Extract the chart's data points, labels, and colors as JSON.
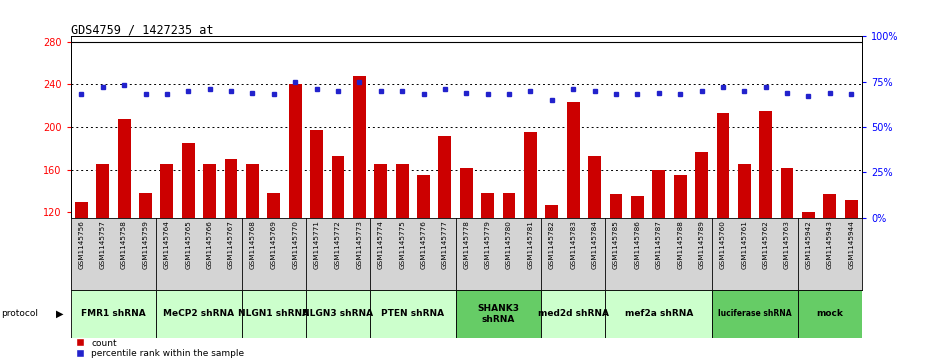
{
  "title": "GDS4759 / 1427235_at",
  "samples": [
    "GSM1145756",
    "GSM1145757",
    "GSM1145758",
    "GSM1145759",
    "GSM1145764",
    "GSM1145765",
    "GSM1145766",
    "GSM1145767",
    "GSM1145768",
    "GSM1145769",
    "GSM1145770",
    "GSM1145771",
    "GSM1145772",
    "GSM1145773",
    "GSM1145774",
    "GSM1145775",
    "GSM1145776",
    "GSM1145777",
    "GSM1145778",
    "GSM1145779",
    "GSM1145780",
    "GSM1145781",
    "GSM1145782",
    "GSM1145783",
    "GSM1145784",
    "GSM1145785",
    "GSM1145786",
    "GSM1145787",
    "GSM1145788",
    "GSM1145789",
    "GSM1145760",
    "GSM1145761",
    "GSM1145762",
    "GSM1145763",
    "GSM1145942",
    "GSM1145943",
    "GSM1145944"
  ],
  "counts": [
    130,
    165,
    208,
    138,
    165,
    185,
    165,
    170,
    165,
    138,
    240,
    197,
    173,
    248,
    165,
    165,
    155,
    192,
    162,
    138,
    138,
    195,
    127,
    223,
    173,
    137,
    135,
    160,
    155,
    177,
    213,
    165,
    215,
    162,
    120,
    137,
    132
  ],
  "percentiles": [
    68,
    72,
    73,
    68,
    68,
    70,
    71,
    70,
    69,
    68,
    75,
    71,
    70,
    75,
    70,
    70,
    68,
    71,
    69,
    68,
    68,
    70,
    65,
    71,
    70,
    68,
    68,
    69,
    68,
    70,
    72,
    70,
    72,
    69,
    67,
    69,
    68
  ],
  "groups": [
    {
      "label": "FMR1 shRNA",
      "start": 0,
      "end": 4,
      "color": "#ccffcc"
    },
    {
      "label": "MeCP2 shRNA",
      "start": 4,
      "end": 8,
      "color": "#ccffcc"
    },
    {
      "label": "NLGN1 shRNA",
      "start": 8,
      "end": 11,
      "color": "#ccffcc"
    },
    {
      "label": "NLGN3 shRNA",
      "start": 11,
      "end": 14,
      "color": "#ccffcc"
    },
    {
      "label": "PTEN shRNA",
      "start": 14,
      "end": 18,
      "color": "#ccffcc"
    },
    {
      "label": "SHANK3\nshRNA",
      "start": 18,
      "end": 22,
      "color": "#66cc66"
    },
    {
      "label": "med2d shRNA",
      "start": 22,
      "end": 25,
      "color": "#ccffcc"
    },
    {
      "label": "mef2a shRNA",
      "start": 25,
      "end": 30,
      "color": "#ccffcc"
    },
    {
      "label": "luciferase shRNA",
      "start": 30,
      "end": 34,
      "color": "#66cc66"
    },
    {
      "label": "mock",
      "start": 34,
      "end": 37,
      "color": "#66cc66"
    }
  ],
  "ylim_left": [
    115,
    285
  ],
  "ylim_right": [
    0,
    100
  ],
  "yticks_left": [
    120,
    160,
    200,
    240,
    280
  ],
  "yticks_right": [
    0,
    25,
    50,
    75,
    100
  ],
  "bar_color": "#cc0000",
  "dot_color": "#2222cc",
  "sample_bg": "#d4d4d4",
  "plot_bg": "#ffffff"
}
